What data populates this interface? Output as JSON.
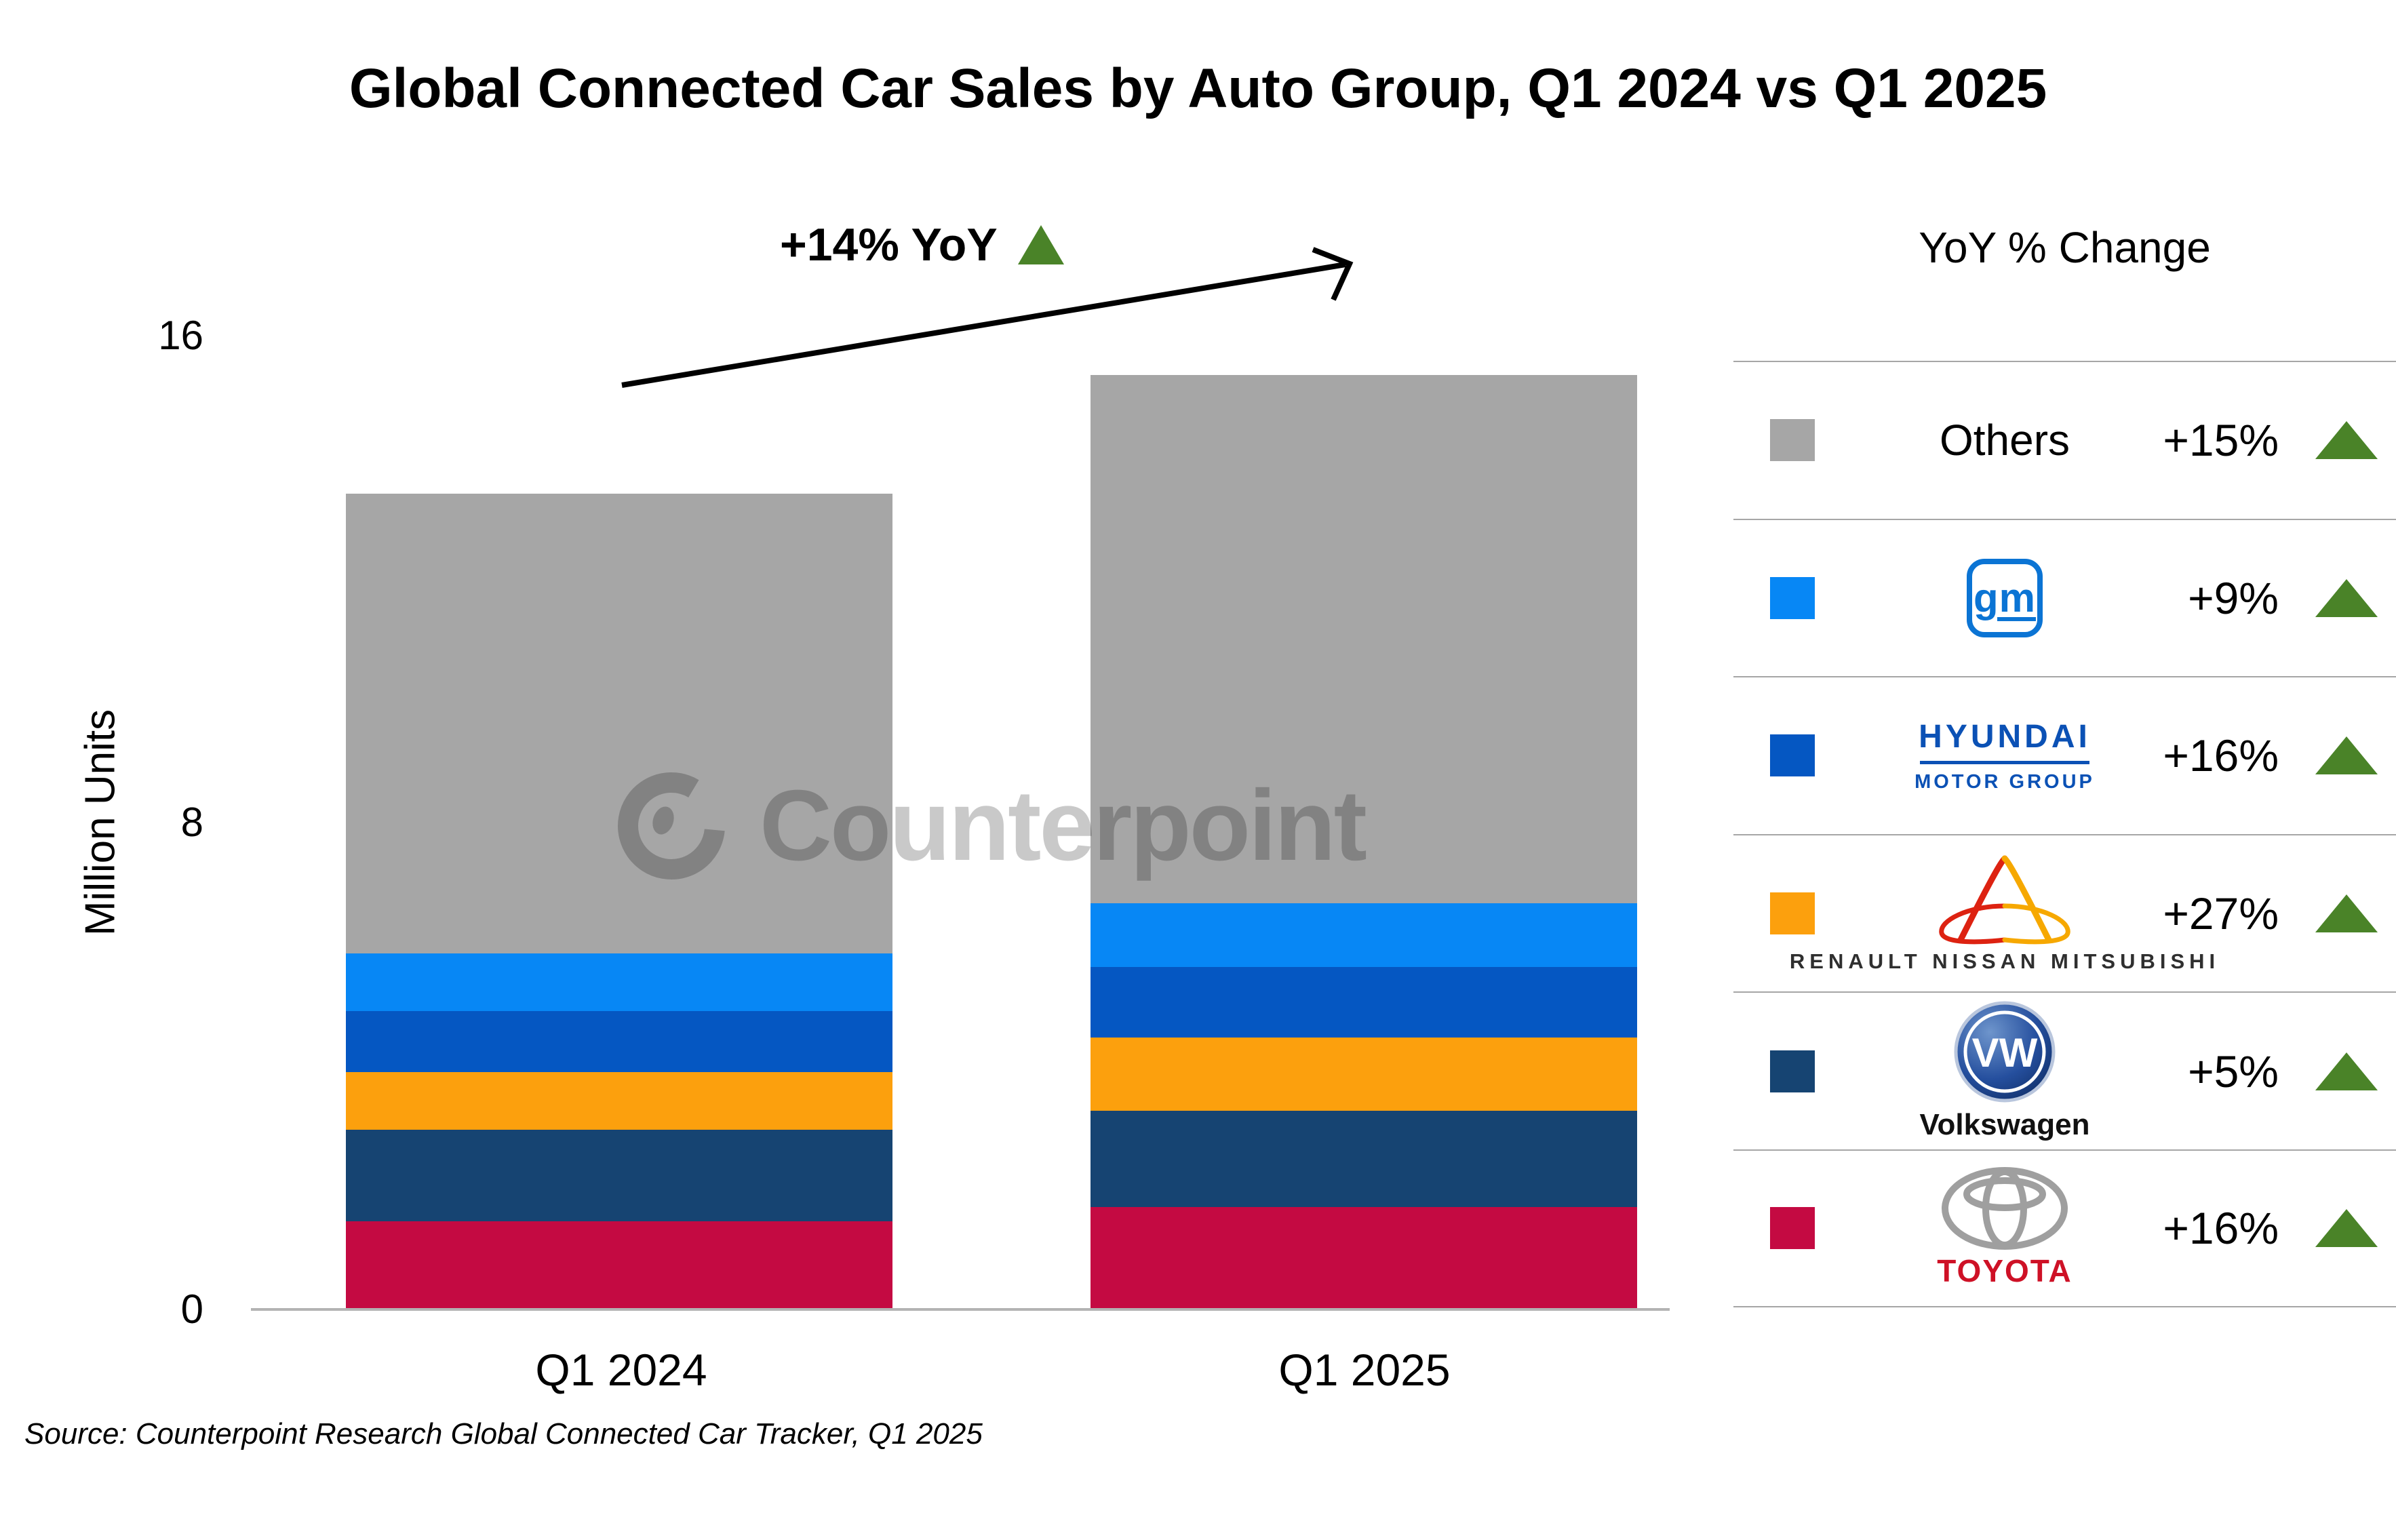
{
  "title": "Global Connected Car Sales by Auto Group, Q1 2024 vs Q1 2025",
  "annotation": {
    "label": "+14% YoY"
  },
  "y_axis": {
    "label": "Million Units",
    "tick_16": "16",
    "tick_8": "8",
    "tick_0": "0"
  },
  "x_axis": {
    "categories": [
      "Q1 2024",
      "Q1 2025"
    ]
  },
  "watermark": "Counterpoint",
  "source": "Source: Counterpoint Research Global Connected Car Tracker, Q1 2025",
  "colors": {
    "up_green": "#4a8328",
    "axis_line": "#b3b3b3"
  },
  "legend": {
    "header": "YoY % Change",
    "rows": [
      {
        "name": "Others",
        "yoy": "+15%",
        "color": "#a6a6a6"
      },
      {
        "name": "GM",
        "yoy": "+9%",
        "color": "#0787f5",
        "logo_text": "gm"
      },
      {
        "name": "Hyundai Motor Group",
        "yoy": "+16%",
        "color": "#0557c2",
        "logo_line1": "HYUNDAI",
        "logo_line2": "MOTOR GROUP"
      },
      {
        "name": "Renault Nissan Mitsubishi",
        "yoy": "+27%",
        "color": "#fca00d",
        "caption": "RENAULT NISSAN MITSUBISHI"
      },
      {
        "name": "Volkswagen",
        "yoy": "+5%",
        "color": "#164472",
        "logo_letters": "VW",
        "caption": "Volkswagen"
      },
      {
        "name": "Toyota",
        "yoy": "+16%",
        "color": "#c40a42",
        "caption": "TOYOTA"
      }
    ]
  },
  "chart_data": {
    "type": "bar",
    "subtype": "stacked",
    "title": "Global Connected Car Sales by Auto Group, Q1 2024 vs Q1 2025",
    "unit": "Million Units",
    "categories": [
      "Q1 2024",
      "Q1 2025"
    ],
    "ylabel": "Million Units",
    "ylim": [
      0,
      16
    ],
    "yticks": [
      0,
      8,
      16
    ],
    "grid": false,
    "legend_position": "right",
    "total_yoy_change": "+14%",
    "totals": [
      13.4,
      15.3
    ],
    "series": [
      {
        "name": "Toyota",
        "color": "#c40a42",
        "values": [
          1.45,
          1.68
        ],
        "yoy": "+16%"
      },
      {
        "name": "Volkswagen",
        "color": "#164472",
        "values": [
          1.5,
          1.58
        ],
        "yoy": "+5%"
      },
      {
        "name": "Renault Nissan Mitsubishi",
        "color": "#fca00d",
        "values": [
          0.95,
          1.21
        ],
        "yoy": "+27%"
      },
      {
        "name": "Hyundai Motor Group",
        "color": "#0557c2",
        "values": [
          1.0,
          1.16
        ],
        "yoy": "+16%"
      },
      {
        "name": "GM",
        "color": "#0787f5",
        "values": [
          0.95,
          1.04
        ],
        "yoy": "+9%"
      },
      {
        "name": "Others",
        "color": "#a6a6a6",
        "values": [
          7.55,
          8.68
        ],
        "yoy": "+15%"
      }
    ]
  }
}
